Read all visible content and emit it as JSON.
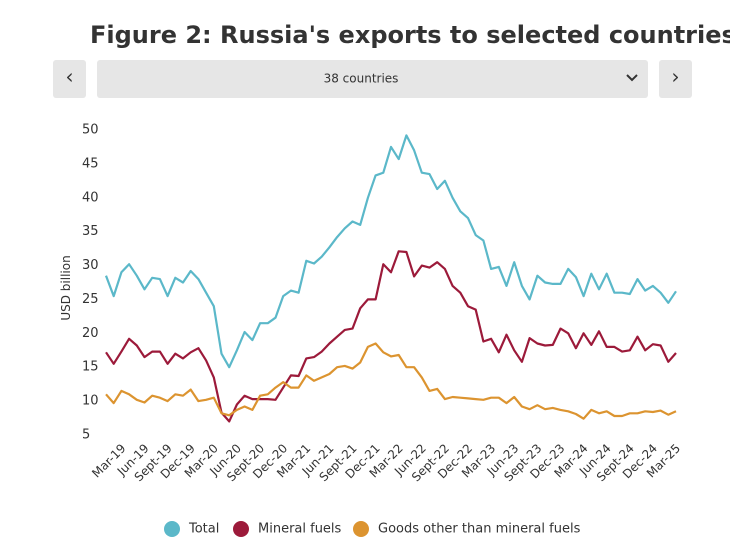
{
  "nav": {
    "prev": "‹",
    "next": "›",
    "dropdown": "38 countries"
  },
  "chart_data": {
    "type": "line",
    "title": "Figure 2: Russia's exports to selected countries",
    "y_label": "USD billion",
    "categories": [
      null,
      null,
      "Mar-19",
      null,
      null,
      "Jun-19",
      null,
      null,
      "Sept-19",
      null,
      null,
      "Dec-19",
      null,
      null,
      "Mar-20",
      null,
      null,
      "Jun-20",
      null,
      null,
      "Sept-20",
      null,
      null,
      "Dec-20",
      null,
      null,
      "Mar-21",
      null,
      null,
      "Jun-21",
      null,
      null,
      "Sept-21",
      null,
      null,
      "Dec-21",
      null,
      null,
      "Mar-22",
      null,
      null,
      "Jun-22",
      null,
      null,
      "Sept-22",
      null,
      null,
      "Dec-22",
      null,
      null,
      "Mar-23",
      null,
      null,
      "Jun-23",
      null,
      null,
      "Sept-23",
      null,
      null,
      "Dec-23",
      null,
      null,
      "Mar-24",
      null,
      null,
      "Jun-24",
      null,
      null,
      "Sept-24",
      null,
      null,
      "Dec-24",
      null,
      null,
      "Mar-25"
    ],
    "series": [
      {
        "name": "Total",
        "color": "#5bb8c9",
        "values": [
          28.5,
          25.5,
          29,
          30.2,
          28.5,
          26.5,
          28.2,
          28,
          25.5,
          28.2,
          27.5,
          29.2,
          28,
          26,
          24,
          17,
          15,
          17.5,
          20.2,
          19,
          21.5,
          21.5,
          22.3,
          25.5,
          26.3,
          26,
          30.7,
          30.3,
          31.3,
          32.7,
          34.2,
          35.5,
          36.5,
          36,
          40,
          43.3,
          43.7,
          47.5,
          45.7,
          49.2,
          47,
          43.7,
          43.5,
          41.3,
          42.5,
          40,
          38,
          37,
          34.5,
          33.7,
          29.5,
          29.8,
          27,
          30.5,
          27,
          25,
          28.5,
          27.5,
          27.3,
          27.3,
          29.5,
          28.3,
          25.5,
          28.8,
          26.5,
          28.8,
          26,
          26,
          25.8,
          28,
          26.3,
          27,
          26,
          24.5,
          26.2
        ]
      },
      {
        "name": "Mineral fuels",
        "color": "#9c1a3a",
        "values": [
          17.2,
          15.5,
          17.3,
          19.2,
          18.2,
          16.5,
          17.3,
          17.3,
          15.5,
          17,
          16.3,
          17.2,
          17.8,
          16,
          13.5,
          8.3,
          7,
          9.5,
          10.8,
          10.3,
          10.3,
          10.3,
          10.2,
          12,
          13.8,
          13.7,
          16.3,
          16.5,
          17.3,
          18.5,
          19.5,
          20.5,
          20.7,
          23.7,
          25,
          25,
          30.2,
          29,
          32.1,
          32,
          28.4,
          30,
          29.7,
          30.5,
          29.5,
          27,
          26,
          24,
          23.5,
          18.8,
          19.2,
          17.2,
          19.8,
          17.5,
          15.8,
          19.3,
          18.5,
          18.2,
          18.3,
          20.7,
          20,
          17.8,
          20,
          18.3,
          20.3,
          18,
          18,
          17.3,
          17.5,
          19.5,
          17.5,
          18.4,
          18.2,
          15.8,
          17.1
        ]
      },
      {
        "name": "Goods other than mineral fuels",
        "color": "#dc9430",
        "values": [
          11,
          9.7,
          11.5,
          11,
          10.2,
          9.8,
          10.8,
          10.5,
          10,
          11,
          10.8,
          11.7,
          10,
          10.2,
          10.5,
          8.2,
          7.9,
          8.7,
          9.2,
          8.7,
          10.8,
          11,
          12,
          12.8,
          12,
          12,
          13.8,
          13,
          13.5,
          14,
          15,
          15.2,
          14.8,
          15.7,
          18,
          18.5,
          17.2,
          16.6,
          16.8,
          15,
          15,
          13.5,
          11.5,
          11.8,
          10.3,
          10.6,
          10.5,
          10.4,
          10.3,
          10.2,
          10.5,
          10.5,
          9.7,
          10.6,
          9.2,
          8.8,
          9.4,
          8.8,
          9,
          8.7,
          8.5,
          8.1,
          7.4,
          8.7,
          8.2,
          8.5,
          7.8,
          7.8,
          8.2,
          8.2,
          8.5,
          8.4,
          8.6,
          8,
          8.5
        ]
      }
    ],
    "ylim": [
      5,
      50
    ],
    "yticks": [
      5,
      10,
      15,
      20,
      25,
      30,
      35,
      40,
      45,
      50
    ],
    "grid": false,
    "legend": "bottom"
  }
}
